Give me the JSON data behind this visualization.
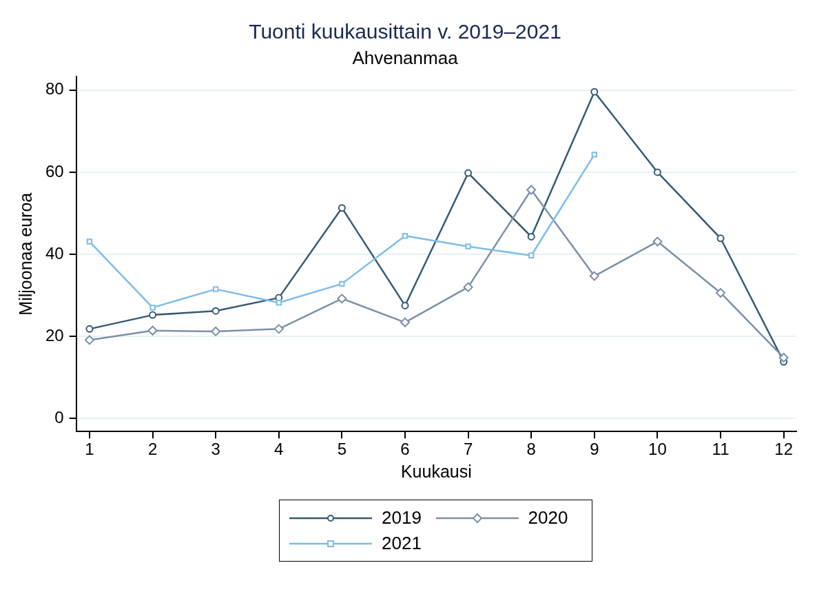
{
  "chart_data": {
    "type": "line",
    "title": "Tuonti kuukausittain v. 2019–2021",
    "subtitle": "Ahvenanmaa",
    "xlabel": "Kuukausi",
    "ylabel": "Miljoonaa euroa",
    "x": [
      1,
      2,
      3,
      4,
      5,
      6,
      7,
      8,
      9,
      10,
      11,
      12
    ],
    "xlim": [
      0.79,
      12.2
    ],
    "xticks": [
      1,
      2,
      3,
      4,
      5,
      6,
      7,
      8,
      9,
      10,
      11,
      12
    ],
    "ylim": [
      -3.2,
      83.3
    ],
    "yticks": [
      0,
      20,
      40,
      60,
      80
    ],
    "grid": "y",
    "legend": "bottom",
    "line_style": "solid",
    "series": [
      {
        "name": "2019",
        "color": "#355a75",
        "marker": "circle",
        "values": [
          21.8,
          25.2,
          26.2,
          29.4,
          51.3,
          27.5,
          59.8,
          44.3,
          79.6,
          60.0,
          43.9,
          13.8
        ]
      },
      {
        "name": "2020",
        "color": "#7d90a8",
        "marker": "diamond",
        "values": [
          19.1,
          21.4,
          21.2,
          21.8,
          29.2,
          23.4,
          32.0,
          55.7,
          34.7,
          43.1,
          30.6,
          14.8
        ]
      },
      {
        "name": "2021",
        "color": "#7cbde8",
        "marker": "square",
        "values": [
          43.1,
          27.0,
          31.5,
          28.2,
          32.8,
          44.5,
          41.9,
          39.7,
          64.3,
          null,
          null,
          null
        ]
      }
    ]
  }
}
